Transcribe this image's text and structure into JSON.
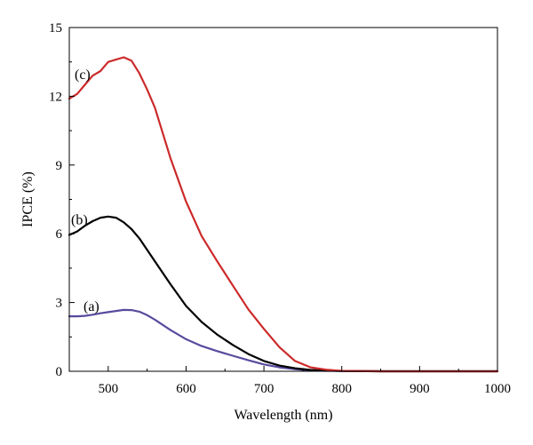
{
  "chart_data": {
    "type": "line",
    "xlabel": "Wavelength (nm)",
    "ylabel": "IPCE (%)",
    "xlim": [
      450,
      1000
    ],
    "ylim": [
      0,
      15
    ],
    "x_ticks": [
      "500",
      "600",
      "700",
      "800",
      "900",
      "1000"
    ],
    "y_ticks": [
      "0",
      "3",
      "6",
      "9",
      "12",
      "15"
    ],
    "grid": false,
    "legend": "none",
    "series": [
      {
        "name": "(a)",
        "color": "#5a4a9e",
        "x": [
          450,
          460,
          470,
          480,
          490,
          500,
          510,
          520,
          530,
          540,
          550,
          560,
          580,
          600,
          620,
          640,
          660,
          680,
          700,
          720,
          740,
          760,
          780,
          800,
          850,
          900,
          950,
          1000
        ],
        "y": [
          2.4,
          2.4,
          2.42,
          2.47,
          2.53,
          2.58,
          2.63,
          2.68,
          2.67,
          2.6,
          2.45,
          2.25,
          1.8,
          1.4,
          1.1,
          0.88,
          0.68,
          0.48,
          0.3,
          0.17,
          0.09,
          0.04,
          0.02,
          0.01,
          0,
          0,
          0,
          0
        ]
      },
      {
        "name": "(b)",
        "color": "#000000",
        "x": [
          450,
          460,
          470,
          480,
          490,
          500,
          510,
          520,
          530,
          540,
          550,
          560,
          580,
          600,
          620,
          640,
          660,
          680,
          700,
          720,
          740,
          760,
          780,
          800,
          850,
          900,
          950,
          1000
        ],
        "y": [
          5.95,
          6.1,
          6.35,
          6.55,
          6.7,
          6.75,
          6.7,
          6.5,
          6.2,
          5.8,
          5.3,
          4.8,
          3.8,
          2.85,
          2.15,
          1.6,
          1.15,
          0.75,
          0.45,
          0.25,
          0.13,
          0.06,
          0.03,
          0.01,
          0,
          0,
          0,
          0
        ]
      },
      {
        "name": "(c)",
        "color": "#cc2a2a",
        "x": [
          450,
          460,
          470,
          480,
          490,
          500,
          510,
          520,
          530,
          540,
          550,
          560,
          580,
          600,
          620,
          640,
          660,
          680,
          700,
          720,
          740,
          760,
          780,
          800,
          850,
          900,
          950,
          1000
        ],
        "y": [
          11.9,
          12.1,
          12.5,
          12.9,
          13.1,
          13.5,
          13.6,
          13.7,
          13.55,
          13.0,
          12.3,
          11.5,
          9.3,
          7.4,
          5.9,
          4.8,
          3.75,
          2.7,
          1.85,
          1.05,
          0.45,
          0.17,
          0.07,
          0.02,
          0,
          0,
          0,
          0
        ]
      }
    ]
  }
}
